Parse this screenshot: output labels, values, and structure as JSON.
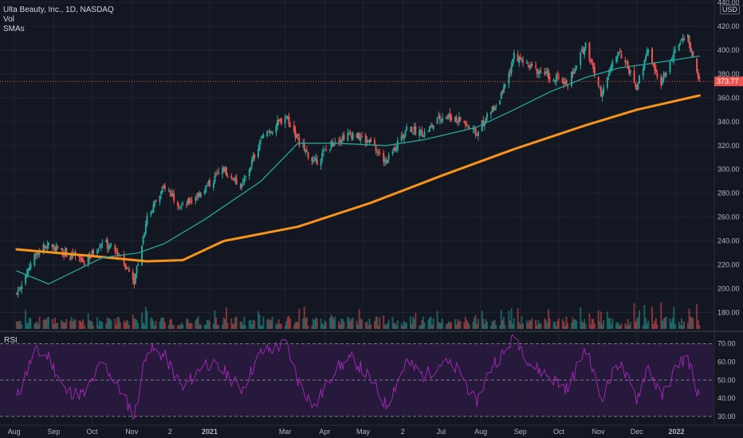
{
  "header": {
    "title": "Ulta Beauty, Inc., 1D, NASDAQ",
    "line2": "Vol",
    "line3": "SMAs"
  },
  "currency": "USD",
  "rsi_label": "RSI",
  "current_price_label": "373.77",
  "colors": {
    "background": "#131722",
    "grid": "#1f2330",
    "up": "#26a69a",
    "down": "#ef5350",
    "sma50": "#26a69a",
    "sma200": "#f7931a",
    "rsi": "#9c27b0",
    "price_line": "#ef5350"
  },
  "chart_data": [
    {
      "type": "candlestick",
      "title": "Ulta Beauty, Inc., 1D, NASDAQ",
      "price_axis_ticks": [
        180,
        200,
        220,
        240,
        260,
        280,
        300,
        320,
        340,
        360,
        380,
        400,
        420,
        440
      ],
      "ylim": [
        165,
        442
      ],
      "time_axis_labels": [
        "Aug",
        "Sep",
        "Oct",
        "Nov",
        "2",
        "2021",
        "Mar",
        "Apr",
        "May",
        "2",
        "Jul",
        "Aug",
        "Sep",
        "Oct",
        "Nov",
        "Dec",
        "2022"
      ],
      "price_path": [
        {
          "t": "2020-08-03",
          "close": 196
        },
        {
          "t": "2020-08-17",
          "close": 228
        },
        {
          "t": "2020-08-28",
          "close": 238
        },
        {
          "t": "2020-09-10",
          "close": 230
        },
        {
          "t": "2020-09-25",
          "close": 222
        },
        {
          "t": "2020-10-09",
          "close": 240
        },
        {
          "t": "2020-10-23",
          "close": 228
        },
        {
          "t": "2020-11-03",
          "close": 207
        },
        {
          "t": "2020-11-13",
          "close": 260
        },
        {
          "t": "2020-11-27",
          "close": 286
        },
        {
          "t": "2020-12-11",
          "close": 268
        },
        {
          "t": "2020-12-28",
          "close": 284
        },
        {
          "t": "2021-01-12",
          "close": 300
        },
        {
          "t": "2021-01-26",
          "close": 285
        },
        {
          "t": "2021-02-10",
          "close": 325
        },
        {
          "t": "2021-03-02",
          "close": 345
        },
        {
          "t": "2021-03-11",
          "close": 325
        },
        {
          "t": "2021-03-24",
          "close": 305
        },
        {
          "t": "2021-04-09",
          "close": 325
        },
        {
          "t": "2021-04-23",
          "close": 330
        },
        {
          "t": "2021-05-07",
          "close": 322
        },
        {
          "t": "2021-05-19",
          "close": 305
        },
        {
          "t": "2021-06-04",
          "close": 335
        },
        {
          "t": "2021-06-18",
          "close": 330
        },
        {
          "t": "2021-07-02",
          "close": 345
        },
        {
          "t": "2021-07-16",
          "close": 342
        },
        {
          "t": "2021-07-28",
          "close": 330
        },
        {
          "t": "2021-08-11",
          "close": 352
        },
        {
          "t": "2021-08-20",
          "close": 368
        },
        {
          "t": "2021-08-27",
          "close": 395
        },
        {
          "t": "2021-09-10",
          "close": 385
        },
        {
          "t": "2021-09-24",
          "close": 378
        },
        {
          "t": "2021-10-08",
          "close": 372
        },
        {
          "t": "2021-10-22",
          "close": 405
        },
        {
          "t": "2021-11-03",
          "close": 365
        },
        {
          "t": "2021-11-17",
          "close": 400
        },
        {
          "t": "2021-12-01",
          "close": 370
        },
        {
          "t": "2021-12-10",
          "close": 400
        },
        {
          "t": "2021-12-20",
          "close": 372
        },
        {
          "t": "2022-01-03",
          "close": 405
        },
        {
          "t": "2022-01-10",
          "close": 410
        },
        {
          "t": "2022-01-19",
          "close": 373.77
        }
      ],
      "sma50_path": [
        {
          "t": "2020-08-03",
          "y": 215
        },
        {
          "t": "2020-08-28",
          "y": 204
        },
        {
          "t": "2020-10-09",
          "y": 226
        },
        {
          "t": "2020-11-06",
          "y": 230
        },
        {
          "t": "2020-11-27",
          "y": 238
        },
        {
          "t": "2020-12-28",
          "y": 258
        },
        {
          "t": "2021-02-10",
          "y": 290
        },
        {
          "t": "2021-03-11",
          "y": 322
        },
        {
          "t": "2021-04-09",
          "y": 322
        },
        {
          "t": "2021-05-19",
          "y": 320
        },
        {
          "t": "2021-06-18",
          "y": 325
        },
        {
          "t": "2021-07-28",
          "y": 335
        },
        {
          "t": "2021-08-27",
          "y": 350
        },
        {
          "t": "2021-09-24",
          "y": 365
        },
        {
          "t": "2021-10-22",
          "y": 377
        },
        {
          "t": "2021-11-17",
          "y": 385
        },
        {
          "t": "2021-12-20",
          "y": 390
        },
        {
          "t": "2022-01-19",
          "y": 395
        }
      ],
      "sma200_path": [
        {
          "t": "2020-08-03",
          "y": 233
        },
        {
          "t": "2020-09-25",
          "y": 228
        },
        {
          "t": "2020-11-13",
          "y": 223
        },
        {
          "t": "2020-12-11",
          "y": 224
        },
        {
          "t": "2021-01-12",
          "y": 240
        },
        {
          "t": "2021-03-11",
          "y": 252
        },
        {
          "t": "2021-05-07",
          "y": 272
        },
        {
          "t": "2021-07-02",
          "y": 295
        },
        {
          "t": "2021-08-27",
          "y": 317
        },
        {
          "t": "2021-10-22",
          "y": 337
        },
        {
          "t": "2021-12-01",
          "y": 350
        },
        {
          "t": "2022-01-19",
          "y": 362
        }
      ],
      "series": [
        {
          "name": "Vol"
        },
        {
          "name": "SMAs"
        }
      ]
    },
    {
      "type": "line",
      "title": "RSI",
      "y_ticks": [
        30,
        40,
        50,
        60,
        70
      ],
      "band": [
        30,
        70
      ],
      "midline": 50,
      "ylim": [
        26,
        76
      ],
      "rsi_path": [
        {
          "t": "2020-08-03",
          "v": 40
        },
        {
          "t": "2020-08-17",
          "v": 66
        },
        {
          "t": "2020-08-28",
          "v": 63
        },
        {
          "t": "2020-09-10",
          "v": 44
        },
        {
          "t": "2020-09-25",
          "v": 42
        },
        {
          "t": "2020-10-09",
          "v": 60
        },
        {
          "t": "2020-10-23",
          "v": 45
        },
        {
          "t": "2020-11-03",
          "v": 30
        },
        {
          "t": "2020-11-13",
          "v": 68
        },
        {
          "t": "2020-11-27",
          "v": 63
        },
        {
          "t": "2020-12-11",
          "v": 45
        },
        {
          "t": "2020-12-28",
          "v": 60
        },
        {
          "t": "2021-01-12",
          "v": 55
        },
        {
          "t": "2021-01-26",
          "v": 45
        },
        {
          "t": "2021-02-10",
          "v": 65
        },
        {
          "t": "2021-03-02",
          "v": 70
        },
        {
          "t": "2021-03-11",
          "v": 50
        },
        {
          "t": "2021-03-24",
          "v": 35
        },
        {
          "t": "2021-04-09",
          "v": 56
        },
        {
          "t": "2021-04-23",
          "v": 62
        },
        {
          "t": "2021-05-07",
          "v": 50
        },
        {
          "t": "2021-05-19",
          "v": 36
        },
        {
          "t": "2021-06-04",
          "v": 60
        },
        {
          "t": "2021-06-18",
          "v": 52
        },
        {
          "t": "2021-07-02",
          "v": 60
        },
        {
          "t": "2021-07-16",
          "v": 55
        },
        {
          "t": "2021-07-28",
          "v": 37
        },
        {
          "t": "2021-08-11",
          "v": 60
        },
        {
          "t": "2021-08-20",
          "v": 65
        },
        {
          "t": "2021-08-27",
          "v": 75
        },
        {
          "t": "2021-09-10",
          "v": 58
        },
        {
          "t": "2021-09-24",
          "v": 52
        },
        {
          "t": "2021-10-08",
          "v": 45
        },
        {
          "t": "2021-10-22",
          "v": 68
        },
        {
          "t": "2021-11-03",
          "v": 40
        },
        {
          "t": "2021-11-17",
          "v": 60
        },
        {
          "t": "2021-12-01",
          "v": 40
        },
        {
          "t": "2021-12-10",
          "v": 58
        },
        {
          "t": "2021-12-20",
          "v": 40
        },
        {
          "t": "2022-01-03",
          "v": 60
        },
        {
          "t": "2022-01-10",
          "v": 62
        },
        {
          "t": "2022-01-19",
          "v": 40
        }
      ]
    }
  ]
}
